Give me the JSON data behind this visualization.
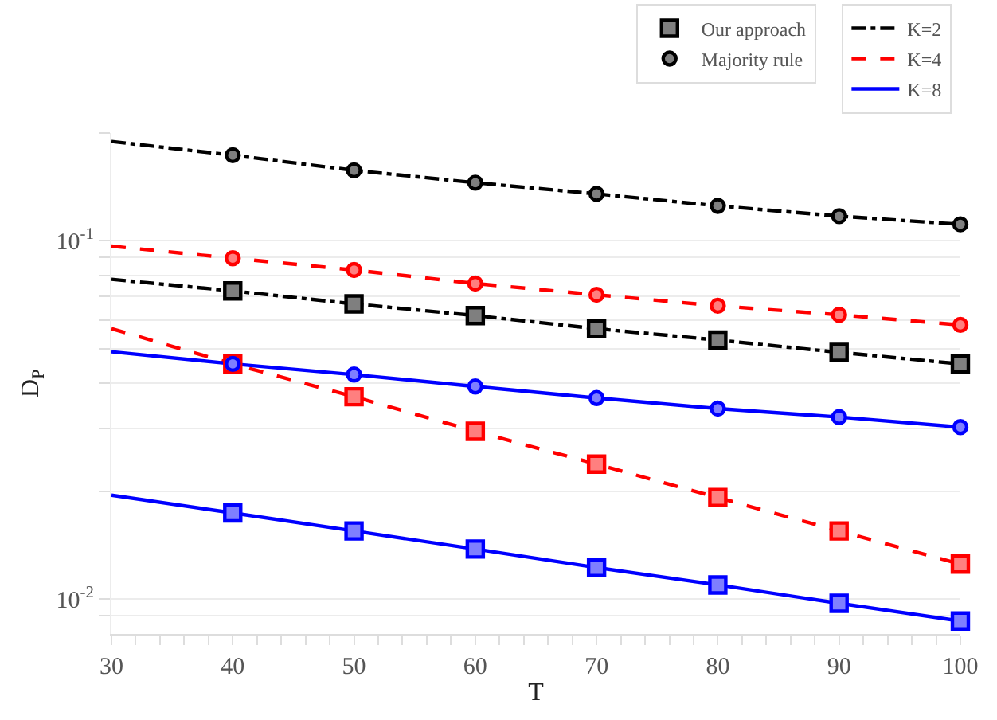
{
  "chart_data": {
    "type": "line",
    "xlabel": "T",
    "ylabel": "D$_{P}$",
    "log": "y",
    "grid": "y",
    "legend": "top right",
    "xlim": [
      30,
      100
    ],
    "xticks": [
      30,
      {
        "value": 32,
        "label": null
      },
      {
        "value": 34,
        "label": null
      },
      {
        "value": 36,
        "label": null
      },
      {
        "value": 38,
        "label": null
      },
      40,
      {
        "value": 42,
        "label": null
      },
      {
        "value": 44,
        "label": null
      },
      {
        "value": 46,
        "label": null
      },
      {
        "value": 48,
        "label": null
      },
      50,
      {
        "value": 52,
        "label": null
      },
      {
        "value": 54,
        "label": null
      },
      {
        "value": 56,
        "label": null
      },
      {
        "value": 58,
        "label": null
      },
      60,
      {
        "value": 62,
        "label": null
      },
      {
        "value": 64,
        "label": null
      },
      {
        "value": 66,
        "label": null
      },
      {
        "value": 68,
        "label": null
      },
      70,
      {
        "value": 72,
        "label": null
      },
      {
        "value": 74,
        "label": null
      },
      {
        "value": 76,
        "label": null
      },
      {
        "value": 78,
        "label": null
      },
      80,
      {
        "value": 82,
        "label": null
      },
      {
        "value": 84,
        "label": null
      },
      {
        "value": 86,
        "label": null
      },
      {
        "value": 88,
        "label": null
      },
      90,
      {
        "value": 92,
        "label": null
      },
      {
        "value": 94,
        "label": null
      },
      {
        "value": 96,
        "label": null
      },
      {
        "value": 98,
        "label": null
      },
      100
    ],
    "ylim": [
      0.008,
      0.2
    ],
    "yticks": [
      {
        "value": 0.009,
        "label": null
      },
      {
        "value": 0.01,
        "label": "10$^{-2}$"
      },
      {
        "value": 0.02,
        "label": null
      },
      {
        "value": 0.03,
        "label": null
      },
      {
        "value": 0.04,
        "label": null
      },
      {
        "value": 0.05,
        "label": null
      },
      {
        "value": 0.06,
        "label": null
      },
      {
        "value": 0.07,
        "label": null
      },
      {
        "value": 0.08,
        "label": null
      },
      {
        "value": 0.09,
        "label": null
      },
      {
        "value": 0.1,
        "label": "10$^{-1}$"
      },
      {
        "value": 0.2,
        "label": null
      }
    ],
    "x": [
      30,
      40,
      50,
      60,
      70,
      80,
      90,
      100
    ],
    "series": [
      {
        "name": "K=2",
        "color": "#000000",
        "line_style": "dashdot",
        "marker": "none",
        "values": [
          0.189,
          0.173,
          0.157,
          0.145,
          0.135,
          0.125,
          0.117,
          0.111
        ]
      },
      {
        "color": "#000000",
        "line_style": "dashdot",
        "marker": "none",
        "values": [
          0.078,
          0.0724,
          0.0666,
          0.0618,
          0.0568,
          0.0528,
          0.0488,
          0.0453
        ]
      },
      {
        "name": "K=4",
        "color": "#ff0000",
        "line_style": "dashed",
        "marker": "none",
        "values": [
          0.0965,
          0.0893,
          0.0828,
          0.0759,
          0.0706,
          0.0658,
          0.0621,
          0.0582
        ]
      },
      {
        "color": "#ff0000",
        "line_style": "dashed",
        "marker": "none",
        "values": [
          0.0568,
          0.0453,
          0.0367,
          0.0294,
          0.0238,
          0.0192,
          0.0155,
          0.01253
        ]
      },
      {
        "name": "K=8",
        "color": "#0000ff",
        "line_style": "solid",
        "marker": "none",
        "values": [
          0.049,
          0.0453,
          0.0423,
          0.0392,
          0.0364,
          0.034,
          0.0322,
          0.0302
        ]
      },
      {
        "color": "#0000ff",
        "line_style": "solid",
        "marker": "none",
        "values": [
          0.0195,
          0.0174,
          0.0155,
          0.0138,
          0.01225,
          0.01096,
          0.00974,
          0.00869
        ]
      },
      {
        "name": "Our approach",
        "type": "scatter",
        "marker": "square",
        "x": [
          40,
          50,
          60,
          70,
          80,
          90,
          100,
          40,
          50,
          60,
          70,
          80,
          90,
          100,
          40,
          50,
          60,
          70,
          80,
          90,
          100
        ],
        "values": [
          0.0724,
          0.0666,
          0.0618,
          0.0568,
          0.0528,
          0.0488,
          0.0453,
          0.0453,
          0.0367,
          0.0294,
          0.0238,
          0.0192,
          0.0155,
          0.01253,
          0.0174,
          0.0155,
          0.0138,
          0.01225,
          0.01096,
          0.00974,
          0.00869
        ],
        "colors": [
          "#000000",
          "#000000",
          "#000000",
          "#000000",
          "#000000",
          "#000000",
          "#000000",
          "#ff0000",
          "#ff0000",
          "#ff0000",
          "#ff0000",
          "#ff0000",
          "#ff0000",
          "#ff0000",
          "#0000ff",
          "#0000ff",
          "#0000ff",
          "#0000ff",
          "#0000ff",
          "#0000ff",
          "#0000ff"
        ]
      },
      {
        "name": "Majority rule",
        "type": "scatter",
        "marker": "circle",
        "x": [
          40,
          50,
          60,
          70,
          80,
          90,
          100,
          40,
          50,
          60,
          70,
          80,
          90,
          100,
          40,
          50,
          60,
          70,
          80,
          90,
          100
        ],
        "values": [
          0.173,
          0.157,
          0.145,
          0.135,
          0.125,
          0.117,
          0.111,
          0.0893,
          0.0828,
          0.0759,
          0.0706,
          0.0658,
          0.0621,
          0.0582,
          0.0453,
          0.0423,
          0.0392,
          0.0364,
          0.034,
          0.0322,
          0.0302
        ],
        "colors": [
          "#000000",
          "#000000",
          "#000000",
          "#000000",
          "#000000",
          "#000000",
          "#000000",
          "#ff0000",
          "#ff0000",
          "#ff0000",
          "#ff0000",
          "#ff0000",
          "#ff0000",
          "#ff0000",
          "#0000ff",
          "#0000ff",
          "#0000ff",
          "#0000ff",
          "#0000ff",
          "#0000ff",
          "#0000ff"
        ]
      }
    ]
  }
}
